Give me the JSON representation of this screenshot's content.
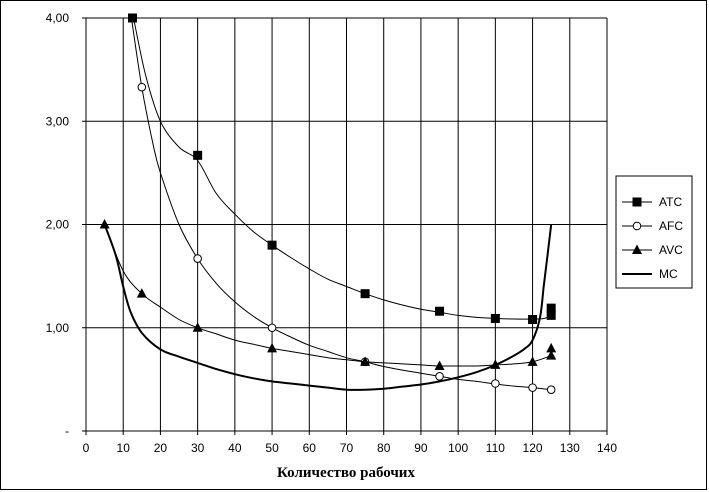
{
  "chart_data": {
    "type": "line",
    "title": "",
    "xlabel": "Количество рабочих",
    "ylabel": "",
    "xlim": [
      0,
      140
    ],
    "ylim": [
      0,
      4
    ],
    "x_ticks": [
      "0",
      "10",
      "20",
      "30",
      "40",
      "50",
      "60",
      "70",
      "80",
      "90",
      "100",
      "110",
      "120",
      "130",
      "140"
    ],
    "y_ticks": [
      "-",
      "1,00",
      "2,00",
      "3,00",
      "4,00"
    ],
    "grid": true,
    "legend_position": "right",
    "series": [
      {
        "name": "ATC",
        "marker": "filled-square",
        "smooth": true,
        "line_color": "#000000",
        "points": [
          [
            12.5,
            4.0
          ],
          [
            30,
            2.67
          ],
          [
            50,
            1.8
          ],
          [
            75,
            1.33
          ],
          [
            95,
            1.16
          ],
          [
            110,
            1.09
          ],
          [
            120,
            1.08
          ],
          [
            125,
            1.12
          ],
          [
            125,
            1.19
          ]
        ],
        "curve": [
          [
            12.5,
            4.05
          ],
          [
            16,
            3.45
          ],
          [
            20,
            3.0
          ],
          [
            25,
            2.75
          ],
          [
            30,
            2.62
          ],
          [
            35,
            2.3
          ],
          [
            40,
            2.1
          ],
          [
            45,
            1.93
          ],
          [
            50,
            1.8
          ],
          [
            55,
            1.68
          ],
          [
            60,
            1.57
          ],
          [
            65,
            1.47
          ],
          [
            70,
            1.4
          ],
          [
            75,
            1.33
          ],
          [
            80,
            1.27
          ],
          [
            85,
            1.22
          ],
          [
            90,
            1.18
          ],
          [
            95,
            1.15
          ],
          [
            100,
            1.12
          ],
          [
            105,
            1.1
          ],
          [
            110,
            1.09
          ],
          [
            115,
            1.085
          ],
          [
            120,
            1.085
          ],
          [
            123,
            1.09
          ],
          [
            125,
            1.12
          ]
        ]
      },
      {
        "name": "AFC",
        "marker": "open-circle",
        "smooth": true,
        "line_color": "#000000",
        "points": [
          [
            15,
            3.33
          ],
          [
            30,
            1.67
          ],
          [
            50,
            1.0
          ],
          [
            75,
            0.67
          ],
          [
            95,
            0.53
          ],
          [
            110,
            0.46
          ],
          [
            120,
            0.42
          ],
          [
            125,
            0.4
          ]
        ],
        "curve": [
          [
            12,
            4.05
          ],
          [
            15,
            3.33
          ],
          [
            18,
            2.78
          ],
          [
            20,
            2.5
          ],
          [
            25,
            2.0
          ],
          [
            30,
            1.67
          ],
          [
            35,
            1.43
          ],
          [
            40,
            1.25
          ],
          [
            45,
            1.11
          ],
          [
            50,
            1.0
          ],
          [
            55,
            0.91
          ],
          [
            60,
            0.83
          ],
          [
            65,
            0.77
          ],
          [
            70,
            0.71
          ],
          [
            75,
            0.67
          ],
          [
            80,
            0.625
          ],
          [
            85,
            0.59
          ],
          [
            90,
            0.56
          ],
          [
            95,
            0.53
          ],
          [
            100,
            0.5
          ],
          [
            105,
            0.48
          ],
          [
            110,
            0.455
          ],
          [
            115,
            0.435
          ],
          [
            120,
            0.42
          ],
          [
            125,
            0.4
          ]
        ]
      },
      {
        "name": "AVC",
        "marker": "filled-triangle",
        "smooth": true,
        "line_color": "#000000",
        "points": [
          [
            5,
            2.0
          ],
          [
            15,
            1.33
          ],
          [
            30,
            1.0
          ],
          [
            50,
            0.8
          ],
          [
            75,
            0.67
          ],
          [
            95,
            0.63
          ],
          [
            110,
            0.64
          ],
          [
            120,
            0.67
          ],
          [
            125,
            0.73
          ],
          [
            125,
            0.8
          ]
        ],
        "curve": [
          [
            5,
            2.0
          ],
          [
            10,
            1.55
          ],
          [
            15,
            1.33
          ],
          [
            20,
            1.2
          ],
          [
            25,
            1.08
          ],
          [
            30,
            1.0
          ],
          [
            35,
            0.94
          ],
          [
            40,
            0.88
          ],
          [
            45,
            0.84
          ],
          [
            50,
            0.8
          ],
          [
            55,
            0.77
          ],
          [
            60,
            0.74
          ],
          [
            65,
            0.71
          ],
          [
            70,
            0.69
          ],
          [
            75,
            0.67
          ],
          [
            80,
            0.66
          ],
          [
            85,
            0.65
          ],
          [
            90,
            0.64
          ],
          [
            95,
            0.63
          ],
          [
            100,
            0.63
          ],
          [
            105,
            0.63
          ],
          [
            110,
            0.64
          ],
          [
            115,
            0.65
          ],
          [
            120,
            0.67
          ],
          [
            125,
            0.73
          ]
        ]
      },
      {
        "name": "MC",
        "marker": "none",
        "smooth": true,
        "line_color": "#000000",
        "points": [],
        "curve": [
          [
            5,
            2.0
          ],
          [
            8,
            1.7
          ],
          [
            10,
            1.4
          ],
          [
            12,
            1.15
          ],
          [
            15,
            0.95
          ],
          [
            20,
            0.79
          ],
          [
            25,
            0.72
          ],
          [
            30,
            0.66
          ],
          [
            35,
            0.6
          ],
          [
            40,
            0.55
          ],
          [
            45,
            0.51
          ],
          [
            50,
            0.48
          ],
          [
            55,
            0.46
          ],
          [
            60,
            0.44
          ],
          [
            65,
            0.42
          ],
          [
            70,
            0.4
          ],
          [
            75,
            0.4
          ],
          [
            80,
            0.41
          ],
          [
            85,
            0.43
          ],
          [
            90,
            0.45
          ],
          [
            95,
            0.48
          ],
          [
            100,
            0.52
          ],
          [
            105,
            0.57
          ],
          [
            110,
            0.64
          ],
          [
            115,
            0.73
          ],
          [
            118,
            0.8
          ],
          [
            120,
            0.88
          ],
          [
            122,
            1.1
          ],
          [
            123,
            1.4
          ],
          [
            124,
            1.7
          ],
          [
            125,
            2.0
          ]
        ]
      }
    ]
  }
}
